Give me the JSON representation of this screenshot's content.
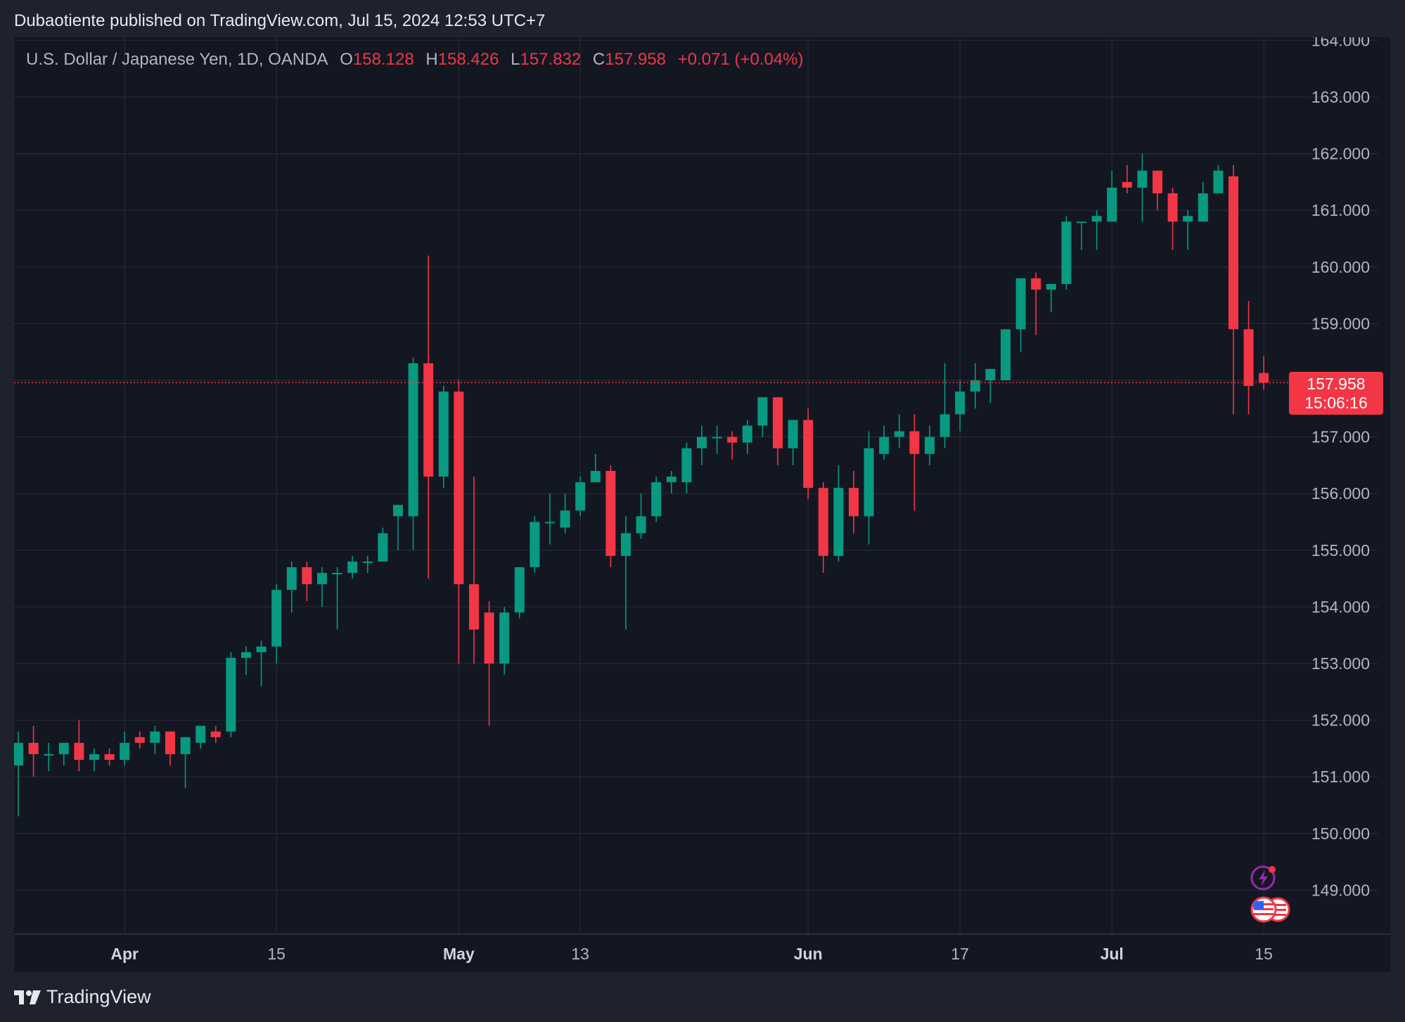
{
  "header": {
    "publisher_line": "Dubaotiente published on TradingView.com, Jul 15, 2024 12:53 UTC+7"
  },
  "legend": {
    "symbol": "U.S. Dollar / Japanese Yen, 1D, OANDA",
    "open_label": "O",
    "open_value": "158.128",
    "high_label": "H",
    "high_value": "158.426",
    "low_label": "L",
    "low_value": "157.832",
    "close_label": "C",
    "close_value": "157.958",
    "change": "+0.071 (+0.04%)"
  },
  "last_price": {
    "price": "157.958",
    "countdown": "15:06:16"
  },
  "footer": {
    "brand": "TradingView"
  },
  "icons": [
    "tradingview-logo-icon",
    "lightning-event-icon",
    "us-flag-icon",
    "us-flag-icon-2"
  ],
  "colors": {
    "background": "#131722",
    "frame": "#1e222d",
    "grid": "#2a2e39",
    "up": "#089981",
    "down": "#f23645",
    "axis_text": "#b2b5be"
  },
  "chart_data": {
    "type": "candlestick",
    "title": "U.S. Dollar / Japanese Yen, 1D, OANDA",
    "ylim": [
      148.3,
      164.0
    ],
    "y_ticks": [
      "164.000",
      "163.000",
      "162.000",
      "161.000",
      "160.000",
      "159.000",
      "158.000",
      "157.000",
      "156.000",
      "155.000",
      "154.000",
      "153.000",
      "152.000",
      "151.000",
      "150.000",
      "149.000"
    ],
    "x_ticks": [
      {
        "label": "Apr",
        "bar_index": 7,
        "bold": true
      },
      {
        "label": "15",
        "bar_index": 17,
        "bold": false
      },
      {
        "label": "May",
        "bar_index": 29,
        "bold": true
      },
      {
        "label": "13",
        "bar_index": 37,
        "bold": false
      },
      {
        "label": "Jun",
        "bar_index": 52,
        "bold": true
      },
      {
        "label": "17",
        "bar_index": 62,
        "bold": false
      },
      {
        "label": "Jul",
        "bar_index": 72,
        "bold": true
      },
      {
        "label": "15",
        "bar_index": 82,
        "bold": false
      }
    ],
    "last_price_line": 157.958,
    "grid": true,
    "candles": [
      {
        "o": 151.2,
        "h": 151.8,
        "l": 150.3,
        "c": 151.6
      },
      {
        "o": 151.6,
        "h": 151.9,
        "l": 151.0,
        "c": 151.4
      },
      {
        "o": 151.4,
        "h": 151.6,
        "l": 151.1,
        "c": 151.4
      },
      {
        "o": 151.4,
        "h": 151.6,
        "l": 151.2,
        "c": 151.6
      },
      {
        "o": 151.6,
        "h": 152.0,
        "l": 151.1,
        "c": 151.3
      },
      {
        "o": 151.3,
        "h": 151.5,
        "l": 151.1,
        "c": 151.4
      },
      {
        "o": 151.4,
        "h": 151.5,
        "l": 151.2,
        "c": 151.3
      },
      {
        "o": 151.3,
        "h": 151.8,
        "l": 151.2,
        "c": 151.6
      },
      {
        "o": 151.7,
        "h": 151.8,
        "l": 151.5,
        "c": 151.6
      },
      {
        "o": 151.6,
        "h": 151.9,
        "l": 151.4,
        "c": 151.8
      },
      {
        "o": 151.8,
        "h": 151.8,
        "l": 151.2,
        "c": 151.4
      },
      {
        "o": 151.4,
        "h": 151.7,
        "l": 150.8,
        "c": 151.7
      },
      {
        "o": 151.6,
        "h": 151.9,
        "l": 151.5,
        "c": 151.9
      },
      {
        "o": 151.8,
        "h": 151.9,
        "l": 151.6,
        "c": 151.7
      },
      {
        "o": 151.8,
        "h": 153.2,
        "l": 151.7,
        "c": 153.1
      },
      {
        "o": 153.1,
        "h": 153.3,
        "l": 152.8,
        "c": 153.2
      },
      {
        "o": 153.2,
        "h": 153.4,
        "l": 152.6,
        "c": 153.3
      },
      {
        "o": 153.3,
        "h": 154.4,
        "l": 153.0,
        "c": 154.3
      },
      {
        "o": 154.3,
        "h": 154.8,
        "l": 153.9,
        "c": 154.7
      },
      {
        "o": 154.7,
        "h": 154.8,
        "l": 154.1,
        "c": 154.4
      },
      {
        "o": 154.4,
        "h": 154.7,
        "l": 154.0,
        "c": 154.6
      },
      {
        "o": 154.6,
        "h": 154.7,
        "l": 153.6,
        "c": 154.6
      },
      {
        "o": 154.6,
        "h": 154.9,
        "l": 154.5,
        "c": 154.8
      },
      {
        "o": 154.8,
        "h": 154.9,
        "l": 154.6,
        "c": 154.8
      },
      {
        "o": 154.8,
        "h": 155.4,
        "l": 154.8,
        "c": 155.3
      },
      {
        "o": 155.6,
        "h": 155.7,
        "l": 155.0,
        "c": 155.8
      },
      {
        "o": 155.6,
        "h": 158.4,
        "l": 155.0,
        "c": 158.3
      },
      {
        "o": 158.3,
        "h": 160.2,
        "l": 154.5,
        "c": 156.3
      },
      {
        "o": 156.3,
        "h": 157.9,
        "l": 156.1,
        "c": 157.8
      },
      {
        "o": 157.8,
        "h": 158.0,
        "l": 153.0,
        "c": 154.4
      },
      {
        "o": 154.4,
        "h": 156.3,
        "l": 153.0,
        "c": 153.6
      },
      {
        "o": 153.9,
        "h": 154.1,
        "l": 151.9,
        "c": 153.0
      },
      {
        "o": 153.0,
        "h": 154.0,
        "l": 152.8,
        "c": 153.9
      },
      {
        "o": 153.9,
        "h": 154.7,
        "l": 153.8,
        "c": 154.7
      },
      {
        "o": 154.7,
        "h": 155.6,
        "l": 154.6,
        "c": 155.5
      },
      {
        "o": 155.5,
        "h": 156.0,
        "l": 155.1,
        "c": 155.5
      },
      {
        "o": 155.4,
        "h": 156.0,
        "l": 155.3,
        "c": 155.7
      },
      {
        "o": 155.7,
        "h": 156.3,
        "l": 155.6,
        "c": 156.2
      },
      {
        "o": 156.2,
        "h": 156.7,
        "l": 156.2,
        "c": 156.4
      },
      {
        "o": 156.4,
        "h": 156.5,
        "l": 154.7,
        "c": 154.9
      },
      {
        "o": 154.9,
        "h": 155.6,
        "l": 153.6,
        "c": 155.3
      },
      {
        "o": 155.3,
        "h": 156.0,
        "l": 155.2,
        "c": 155.6
      },
      {
        "o": 155.6,
        "h": 156.3,
        "l": 155.5,
        "c": 156.2
      },
      {
        "o": 156.2,
        "h": 156.4,
        "l": 156.0,
        "c": 156.3
      },
      {
        "o": 156.2,
        "h": 156.9,
        "l": 156.0,
        "c": 156.8
      },
      {
        "o": 156.8,
        "h": 157.2,
        "l": 156.5,
        "c": 157.0
      },
      {
        "o": 157.0,
        "h": 157.2,
        "l": 156.7,
        "c": 157.0
      },
      {
        "o": 157.0,
        "h": 157.1,
        "l": 156.6,
        "c": 156.9
      },
      {
        "o": 156.9,
        "h": 157.3,
        "l": 156.7,
        "c": 157.2
      },
      {
        "o": 157.2,
        "h": 157.7,
        "l": 157.0,
        "c": 157.7
      },
      {
        "o": 157.7,
        "h": 157.7,
        "l": 156.5,
        "c": 156.8
      },
      {
        "o": 156.8,
        "h": 157.3,
        "l": 156.5,
        "c": 157.3
      },
      {
        "o": 157.3,
        "h": 157.5,
        "l": 155.9,
        "c": 156.1
      },
      {
        "o": 156.1,
        "h": 156.2,
        "l": 154.6,
        "c": 154.9
      },
      {
        "o": 154.9,
        "h": 156.5,
        "l": 154.8,
        "c": 156.1
      },
      {
        "o": 156.1,
        "h": 156.4,
        "l": 155.3,
        "c": 155.6
      },
      {
        "o": 155.6,
        "h": 157.1,
        "l": 155.1,
        "c": 156.8
      },
      {
        "o": 156.7,
        "h": 157.2,
        "l": 156.6,
        "c": 157.0
      },
      {
        "o": 157.0,
        "h": 157.4,
        "l": 156.8,
        "c": 157.1
      },
      {
        "o": 157.1,
        "h": 157.4,
        "l": 155.7,
        "c": 156.7
      },
      {
        "o": 156.7,
        "h": 157.2,
        "l": 156.5,
        "c": 157.0
      },
      {
        "o": 157.0,
        "h": 158.3,
        "l": 156.8,
        "c": 157.4
      },
      {
        "o": 157.4,
        "h": 158.0,
        "l": 157.1,
        "c": 157.8
      },
      {
        "o": 157.8,
        "h": 158.3,
        "l": 157.5,
        "c": 158.0
      },
      {
        "o": 158.0,
        "h": 158.2,
        "l": 157.6,
        "c": 158.2
      },
      {
        "o": 158.0,
        "h": 158.9,
        "l": 158.0,
        "c": 158.9
      },
      {
        "o": 158.9,
        "h": 159.8,
        "l": 158.5,
        "c": 159.8
      },
      {
        "o": 159.8,
        "h": 159.9,
        "l": 158.8,
        "c": 159.6
      },
      {
        "o": 159.6,
        "h": 159.7,
        "l": 159.2,
        "c": 159.7
      },
      {
        "o": 159.7,
        "h": 160.9,
        "l": 159.6,
        "c": 160.8
      },
      {
        "o": 160.8,
        "h": 160.8,
        "l": 160.3,
        "c": 160.8
      },
      {
        "o": 160.8,
        "h": 161.0,
        "l": 160.3,
        "c": 160.9
      },
      {
        "o": 160.8,
        "h": 161.7,
        "l": 160.8,
        "c": 161.4
      },
      {
        "o": 161.5,
        "h": 161.8,
        "l": 161.3,
        "c": 161.4
      },
      {
        "o": 161.4,
        "h": 162.0,
        "l": 160.8,
        "c": 161.7
      },
      {
        "o": 161.7,
        "h": 161.7,
        "l": 161.0,
        "c": 161.3
      },
      {
        "o": 161.3,
        "h": 161.4,
        "l": 160.3,
        "c": 160.8
      },
      {
        "o": 160.8,
        "h": 161.0,
        "l": 160.3,
        "c": 160.9
      },
      {
        "o": 160.8,
        "h": 161.5,
        "l": 160.8,
        "c": 161.3
      },
      {
        "o": 161.3,
        "h": 161.8,
        "l": 161.3,
        "c": 161.7
      },
      {
        "o": 161.6,
        "h": 161.8,
        "l": 157.4,
        "c": 158.9
      },
      {
        "o": 158.9,
        "h": 159.4,
        "l": 157.4,
        "c": 157.9
      },
      {
        "o": 158.128,
        "h": 158.426,
        "l": 157.832,
        "c": 157.958
      }
    ]
  }
}
